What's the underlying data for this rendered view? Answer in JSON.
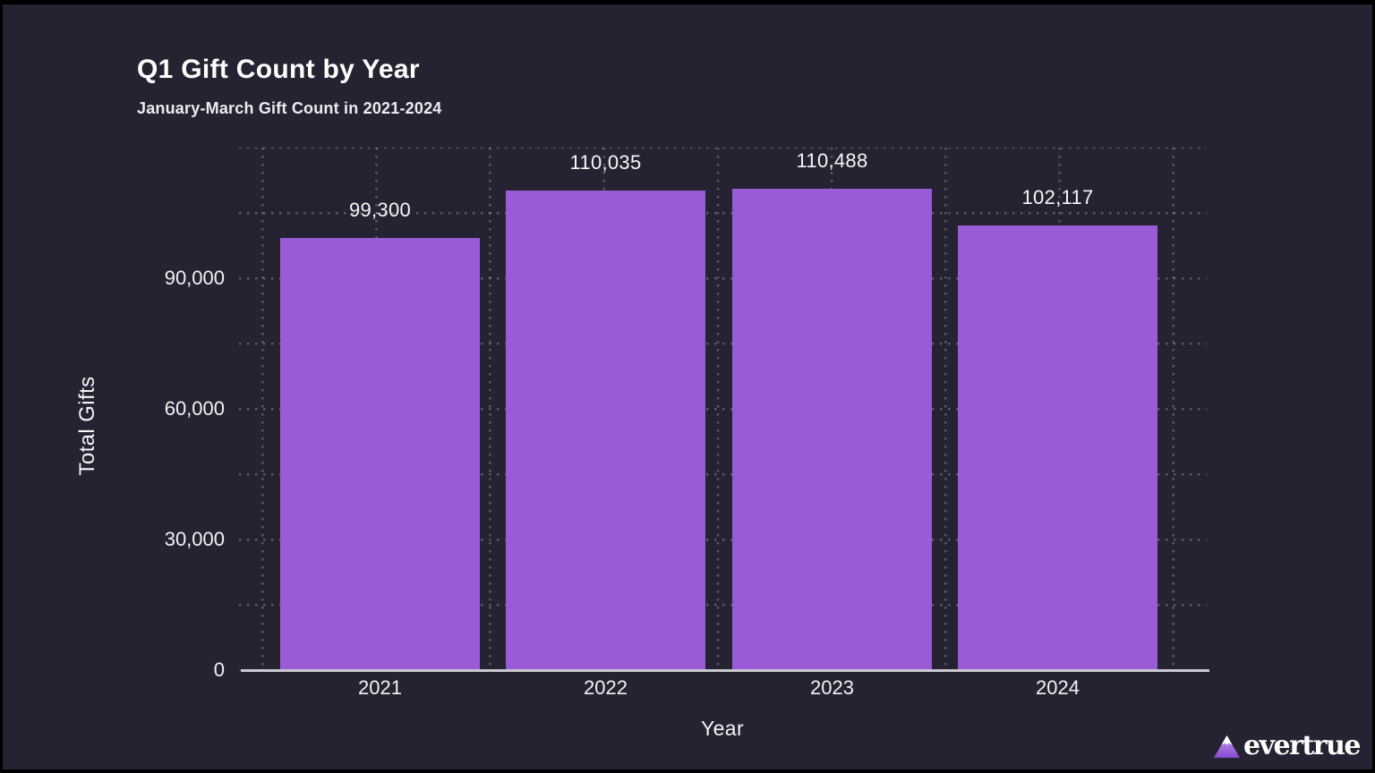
{
  "header": {
    "title": "Q1 Gift Count by Year",
    "subtitle": "January-March Gift Count in 2021-2024"
  },
  "chart_data": {
    "type": "bar",
    "title": "Q1 Gift Count by Year",
    "subtitle": "January-March Gift Count in 2021-2024",
    "categories": [
      "2021",
      "2022",
      "2023",
      "2024"
    ],
    "values": [
      99300,
      110035,
      110488,
      102117
    ],
    "value_labels": [
      "99,300",
      "110,035",
      "110,488",
      "102,117"
    ],
    "xlabel": "Year",
    "ylabel": "Total Gifts",
    "ylim": [
      0,
      120000
    ],
    "yticks": [
      {
        "value": 0,
        "label": "0"
      },
      {
        "value": 30000,
        "label": "30,000"
      },
      {
        "value": 60000,
        "label": "60,000"
      },
      {
        "value": 90000,
        "label": "90,000"
      }
    ],
    "grid": {
      "style": "dotted",
      "horizontal_interval": 15000,
      "vertical": "half-category intervals"
    },
    "legend_position": "none",
    "bar_color": "#995CD6"
  },
  "colors": {
    "background": "#252331",
    "bar": "#995CD6",
    "axis_line": "#c9c8d0",
    "text": "#ffffff",
    "logo_gradient_top": "#cdb2f0",
    "logo_gradient_bottom": "#8549cf"
  },
  "branding": {
    "logo_text": "evertrue",
    "logo_icon": "mountain-triangle-icon"
  }
}
